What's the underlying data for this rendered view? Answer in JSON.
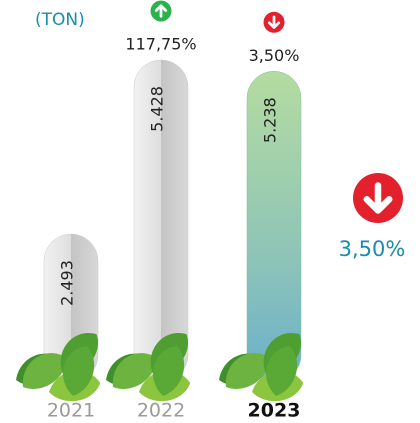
{
  "chart_data": {
    "type": "bar",
    "unit_label": "(TON)",
    "categories": [
      "2021",
      "2022",
      "2023"
    ],
    "values": [
      2493,
      5428,
      5238
    ],
    "value_labels": [
      "2.493",
      "5.428",
      "5.238"
    ],
    "highlight_index": 2,
    "colors": [
      "#c9c9c9",
      "#c9c9c9",
      "#7fbf9a"
    ],
    "changes": [
      null,
      {
        "value": 117.75,
        "label": "117,75%",
        "direction": "up"
      },
      {
        "value": 3.5,
        "label": "3,50%",
        "direction": "down"
      }
    ],
    "summary_change": {
      "value": 3.5,
      "label": "3,50%",
      "direction": "down"
    }
  }
}
